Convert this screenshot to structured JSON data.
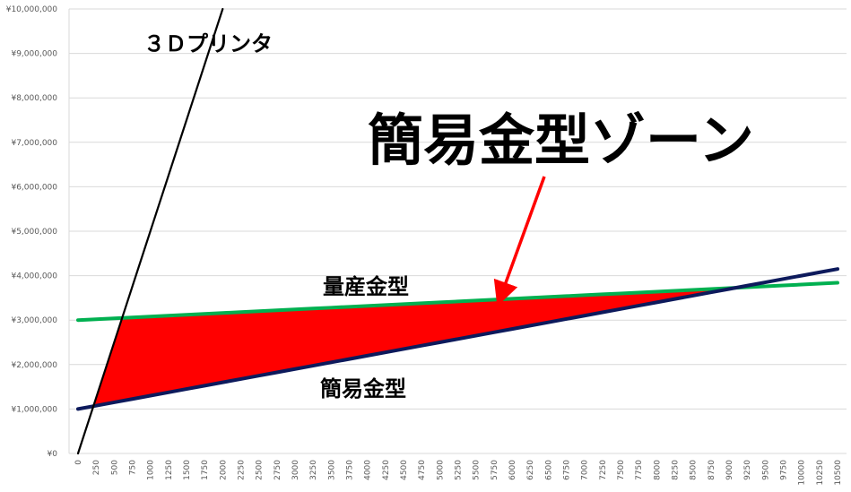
{
  "chart_data": {
    "type": "line",
    "categories": [
      0,
      250,
      500,
      750,
      1000,
      1250,
      1500,
      1750,
      2000,
      2250,
      2500,
      2750,
      3000,
      3250,
      3500,
      3750,
      4000,
      4250,
      4500,
      4750,
      5000,
      5250,
      5500,
      5750,
      6000,
      6250,
      6500,
      6750,
      7000,
      7250,
      7500,
      7750,
      8000,
      8250,
      8500,
      8750,
      9000,
      9250,
      9500,
      9750,
      10000,
      10250,
      10500
    ],
    "series": [
      {
        "name": "３Ｄプリンタ",
        "color": "#000000",
        "values": [
          0,
          1250000,
          2500000,
          3750000,
          5000000,
          6250000,
          7500000,
          8750000,
          10000000,
          null,
          null,
          null,
          null,
          null,
          null,
          null,
          null,
          null,
          null,
          null,
          null,
          null,
          null,
          null,
          null,
          null,
          null,
          null,
          null,
          null,
          null,
          null,
          null,
          null,
          null,
          null,
          null,
          null,
          null,
          null,
          null,
          null,
          null
        ]
      },
      {
        "name": "量産金型",
        "color": "#00b050",
        "values": [
          3000000,
          3020000,
          3040000,
          3060000,
          3080000,
          3100000,
          3120000,
          3140000,
          3160000,
          3180000,
          3200000,
          3220000,
          3240000,
          3260000,
          3280000,
          3300000,
          3320000,
          3340000,
          3360000,
          3380000,
          3400000,
          3420000,
          3440000,
          3460000,
          3480000,
          3500000,
          3520000,
          3540000,
          3560000,
          3580000,
          3600000,
          3620000,
          3640000,
          3660000,
          3680000,
          3700000,
          3720000,
          3740000,
          3760000,
          3780000,
          3800000,
          3820000,
          3840000
        ]
      },
      {
        "name": "簡易金型",
        "color": "#0d1a5c",
        "values": [
          1000000,
          1075000,
          1150000,
          1225000,
          1300000,
          1375000,
          1450000,
          1525000,
          1600000,
          1675000,
          1750000,
          1825000,
          1900000,
          1975000,
          2050000,
          2125000,
          2200000,
          2275000,
          2350000,
          2425000,
          2500000,
          2575000,
          2650000,
          2725000,
          2800000,
          2875000,
          2950000,
          3025000,
          3100000,
          3175000,
          3250000,
          3325000,
          3400000,
          3475000,
          3550000,
          3625000,
          3700000,
          3775000,
          3850000,
          3925000,
          4000000,
          4075000,
          4150000
        ]
      }
    ],
    "annotations": [
      "簡易金型ゾーン"
    ],
    "zone_color": "#ff0000",
    "ylim": [
      0,
      10000000
    ],
    "yticks": [
      {
        "value": 0,
        "label": "¥0"
      },
      {
        "value": 1000000,
        "label": "¥1,000,000"
      },
      {
        "value": 2000000,
        "label": "¥2,000,000"
      },
      {
        "value": 3000000,
        "label": "¥3,000,000"
      },
      {
        "value": 4000000,
        "label": "¥4,000,000"
      },
      {
        "value": 5000000,
        "label": "¥5,000,000"
      },
      {
        "value": 6000000,
        "label": "¥6,000,000"
      },
      {
        "value": 7000000,
        "label": "¥7,000,000"
      },
      {
        "value": 8000000,
        "label": "¥8,000,000"
      },
      {
        "value": 9000000,
        "label": "¥9,000,000"
      },
      {
        "value": 10000000,
        "label": "¥10,000,000"
      }
    ],
    "grid": true
  }
}
